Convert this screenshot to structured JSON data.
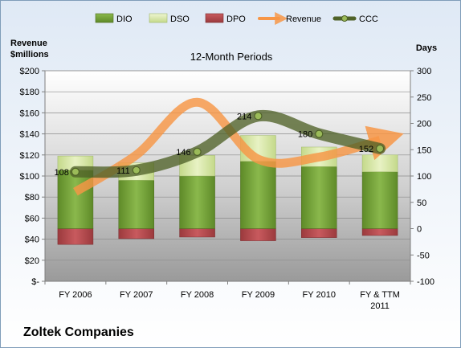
{
  "company": "Zoltek Companies",
  "chart_data": {
    "type": "bar",
    "title": "12-Month Periods",
    "categories": [
      "FY 2006",
      "FY 2007",
      "FY 2008",
      "FY 2009",
      "FY 2010",
      "FY & TTM\n2011"
    ],
    "left_axis": {
      "label_lines": [
        "Revenue",
        "$millions"
      ],
      "ticks": [
        "$-",
        "$20",
        "$40",
        "$60",
        "$80",
        "$100",
        "$120",
        "$140",
        "$160",
        "$180",
        "$200"
      ],
      "ylim": [
        0,
        200
      ]
    },
    "right_axis": {
      "label": "Days",
      "ticks": [
        "-100",
        "-50",
        "0",
        "50",
        "100",
        "150",
        "200",
        "250",
        "300"
      ],
      "ylim": [
        -100,
        300
      ]
    },
    "series": [
      {
        "name": "DIO",
        "type": "bar",
        "color": "#77a03a",
        "values": [
          111,
          92,
          100,
          128,
          118,
          108
        ]
      },
      {
        "name": "DSO",
        "type": "bar",
        "color": "#d8e7a8",
        "values": [
          27,
          33,
          39,
          49,
          37,
          32
        ]
      },
      {
        "name": "DPO",
        "type": "bar",
        "color": "#b94a4e",
        "values": [
          -30,
          -19,
          -16,
          -23,
          -17,
          -13
        ]
      },
      {
        "name": "Revenue",
        "type": "line",
        "color": "#f79646",
        "values": [
          85,
          120,
          170,
          116,
          118,
          134
        ]
      },
      {
        "name": "CCC",
        "type": "line",
        "color": "#4f6228",
        "values": [
          108,
          111,
          146,
          214,
          180,
          152
        ]
      }
    ],
    "data_labels": [
      "108",
      "111",
      "146",
      "214",
      "180",
      "152"
    ],
    "grid": true,
    "legend_position": "top"
  }
}
